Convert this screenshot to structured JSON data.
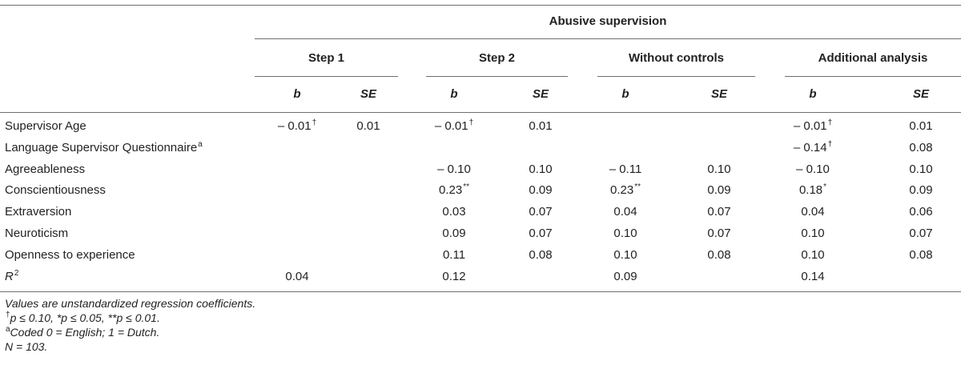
{
  "table": {
    "group_header": "Abusive supervision",
    "column_groups": [
      "Step 1",
      "Step 2",
      "Without controls",
      "Additional analysis"
    ],
    "col_b": "b",
    "col_se": "SE",
    "rows": [
      {
        "label": "Supervisor Age",
        "label_sup": "",
        "cells": [
          [
            "– 0.01",
            "†"
          ],
          [
            "0.01",
            ""
          ],
          [
            "– 0.01",
            "†"
          ],
          [
            "0.01",
            ""
          ],
          [
            "",
            ""
          ],
          [
            "",
            ""
          ],
          [
            "– 0.01",
            "†"
          ],
          [
            "0.01",
            ""
          ]
        ]
      },
      {
        "label": "Language Supervisor Questionnaire",
        "label_sup": "a",
        "cells": [
          [
            "",
            ""
          ],
          [
            "",
            ""
          ],
          [
            "",
            ""
          ],
          [
            "",
            ""
          ],
          [
            "",
            ""
          ],
          [
            "",
            ""
          ],
          [
            "– 0.14",
            "†"
          ],
          [
            "0.08",
            ""
          ]
        ]
      },
      {
        "label": "Agreeableness",
        "label_sup": "",
        "cells": [
          [
            "",
            ""
          ],
          [
            "",
            ""
          ],
          [
            "– 0.10",
            ""
          ],
          [
            "0.10",
            ""
          ],
          [
            "– 0.11",
            ""
          ],
          [
            "0.10",
            ""
          ],
          [
            "– 0.10",
            ""
          ],
          [
            "0.10",
            ""
          ]
        ]
      },
      {
        "label": "Conscientiousness",
        "label_sup": "",
        "cells": [
          [
            "",
            ""
          ],
          [
            "",
            ""
          ],
          [
            "0.23",
            "**"
          ],
          [
            "0.09",
            ""
          ],
          [
            "0.23",
            "**"
          ],
          [
            "0.09",
            ""
          ],
          [
            "0.18",
            "*"
          ],
          [
            "0.09",
            ""
          ]
        ]
      },
      {
        "label": "Extraversion",
        "label_sup": "",
        "cells": [
          [
            "",
            ""
          ],
          [
            "",
            ""
          ],
          [
            "0.03",
            ""
          ],
          [
            "0.07",
            ""
          ],
          [
            "0.04",
            ""
          ],
          [
            "0.07",
            ""
          ],
          [
            "0.04",
            ""
          ],
          [
            "0.06",
            ""
          ]
        ]
      },
      {
        "label": "Neuroticism",
        "label_sup": "",
        "cells": [
          [
            "",
            ""
          ],
          [
            "",
            ""
          ],
          [
            "0.09",
            ""
          ],
          [
            "0.07",
            ""
          ],
          [
            "0.10",
            ""
          ],
          [
            "0.07",
            ""
          ],
          [
            "0.10",
            ""
          ],
          [
            "0.07",
            ""
          ]
        ]
      },
      {
        "label": "Openness to experience",
        "label_sup": "",
        "cells": [
          [
            "",
            ""
          ],
          [
            "",
            ""
          ],
          [
            "0.11",
            ""
          ],
          [
            "0.08",
            ""
          ],
          [
            "0.10",
            ""
          ],
          [
            "0.08",
            ""
          ],
          [
            "0.10",
            ""
          ],
          [
            "0.08",
            ""
          ]
        ]
      },
      {
        "label": "R",
        "label_sup": "2",
        "label_italic": true,
        "cells": [
          [
            "0.04",
            ""
          ],
          [
            "",
            ""
          ],
          [
            "0.12",
            ""
          ],
          [
            "",
            ""
          ],
          [
            "0.09",
            ""
          ],
          [
            "",
            ""
          ],
          [
            "0.14",
            ""
          ],
          [
            "",
            ""
          ]
        ]
      }
    ]
  },
  "notes": [
    {
      "sup": "",
      "text": "Values are unstandardized regression coefficients."
    },
    {
      "sup": "†",
      "text": "p ≤ 0.10, *p ≤ 0.05, **p ≤ 0.01."
    },
    {
      "sup": "a",
      "text": "Coded 0 = English; 1 = Dutch."
    },
    {
      "sup": "",
      "text": "N = 103."
    }
  ]
}
